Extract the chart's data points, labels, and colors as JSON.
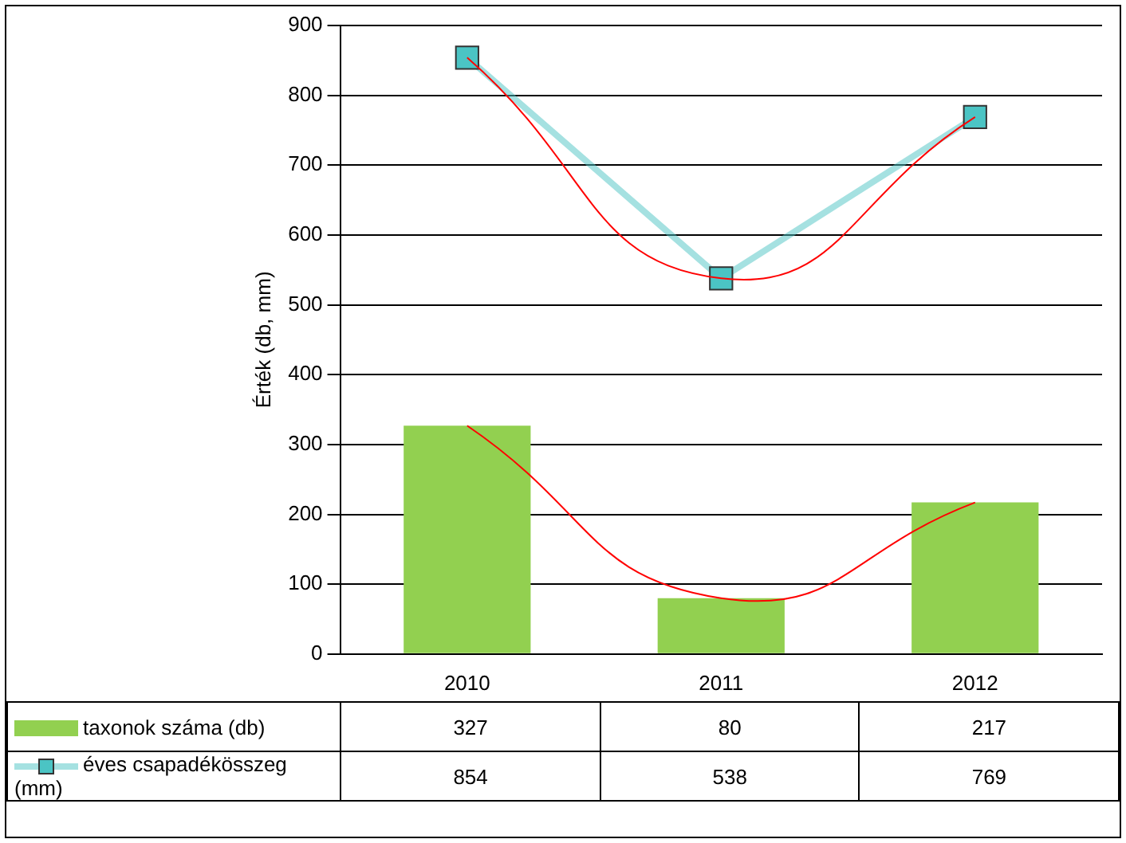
{
  "chart_data": {
    "type": "bar",
    "ylabel": "Érték (db, mm)",
    "categories": [
      "2010",
      "2011",
      "2012"
    ],
    "series": [
      {
        "name": "taxonok száma (db)",
        "color": "#92d050",
        "values": [
          327,
          80,
          217
        ],
        "value_labels": [
          "327",
          "80",
          "217"
        ]
      },
      {
        "name": "éves csapadékösszeg (mm)",
        "type": "line",
        "color": "#4bc4c4",
        "values": [
          854,
          538,
          769
        ],
        "value_labels": [
          "854",
          "538",
          "769"
        ]
      },
      {
        "type": "line",
        "color": "#ff0000",
        "marker": "none",
        "values": [
          327,
          80,
          217
        ]
      },
      {
        "type": "line",
        "color": "#ff0000",
        "marker": "none",
        "values": [
          854,
          538,
          769
        ]
      }
    ],
    "ylim": [
      0,
      900
    ],
    "yticks": [
      0,
      100,
      200,
      300,
      400,
      500,
      600,
      700,
      800,
      900
    ],
    "grid": "y",
    "legend": "bottom",
    "marker": "square"
  }
}
